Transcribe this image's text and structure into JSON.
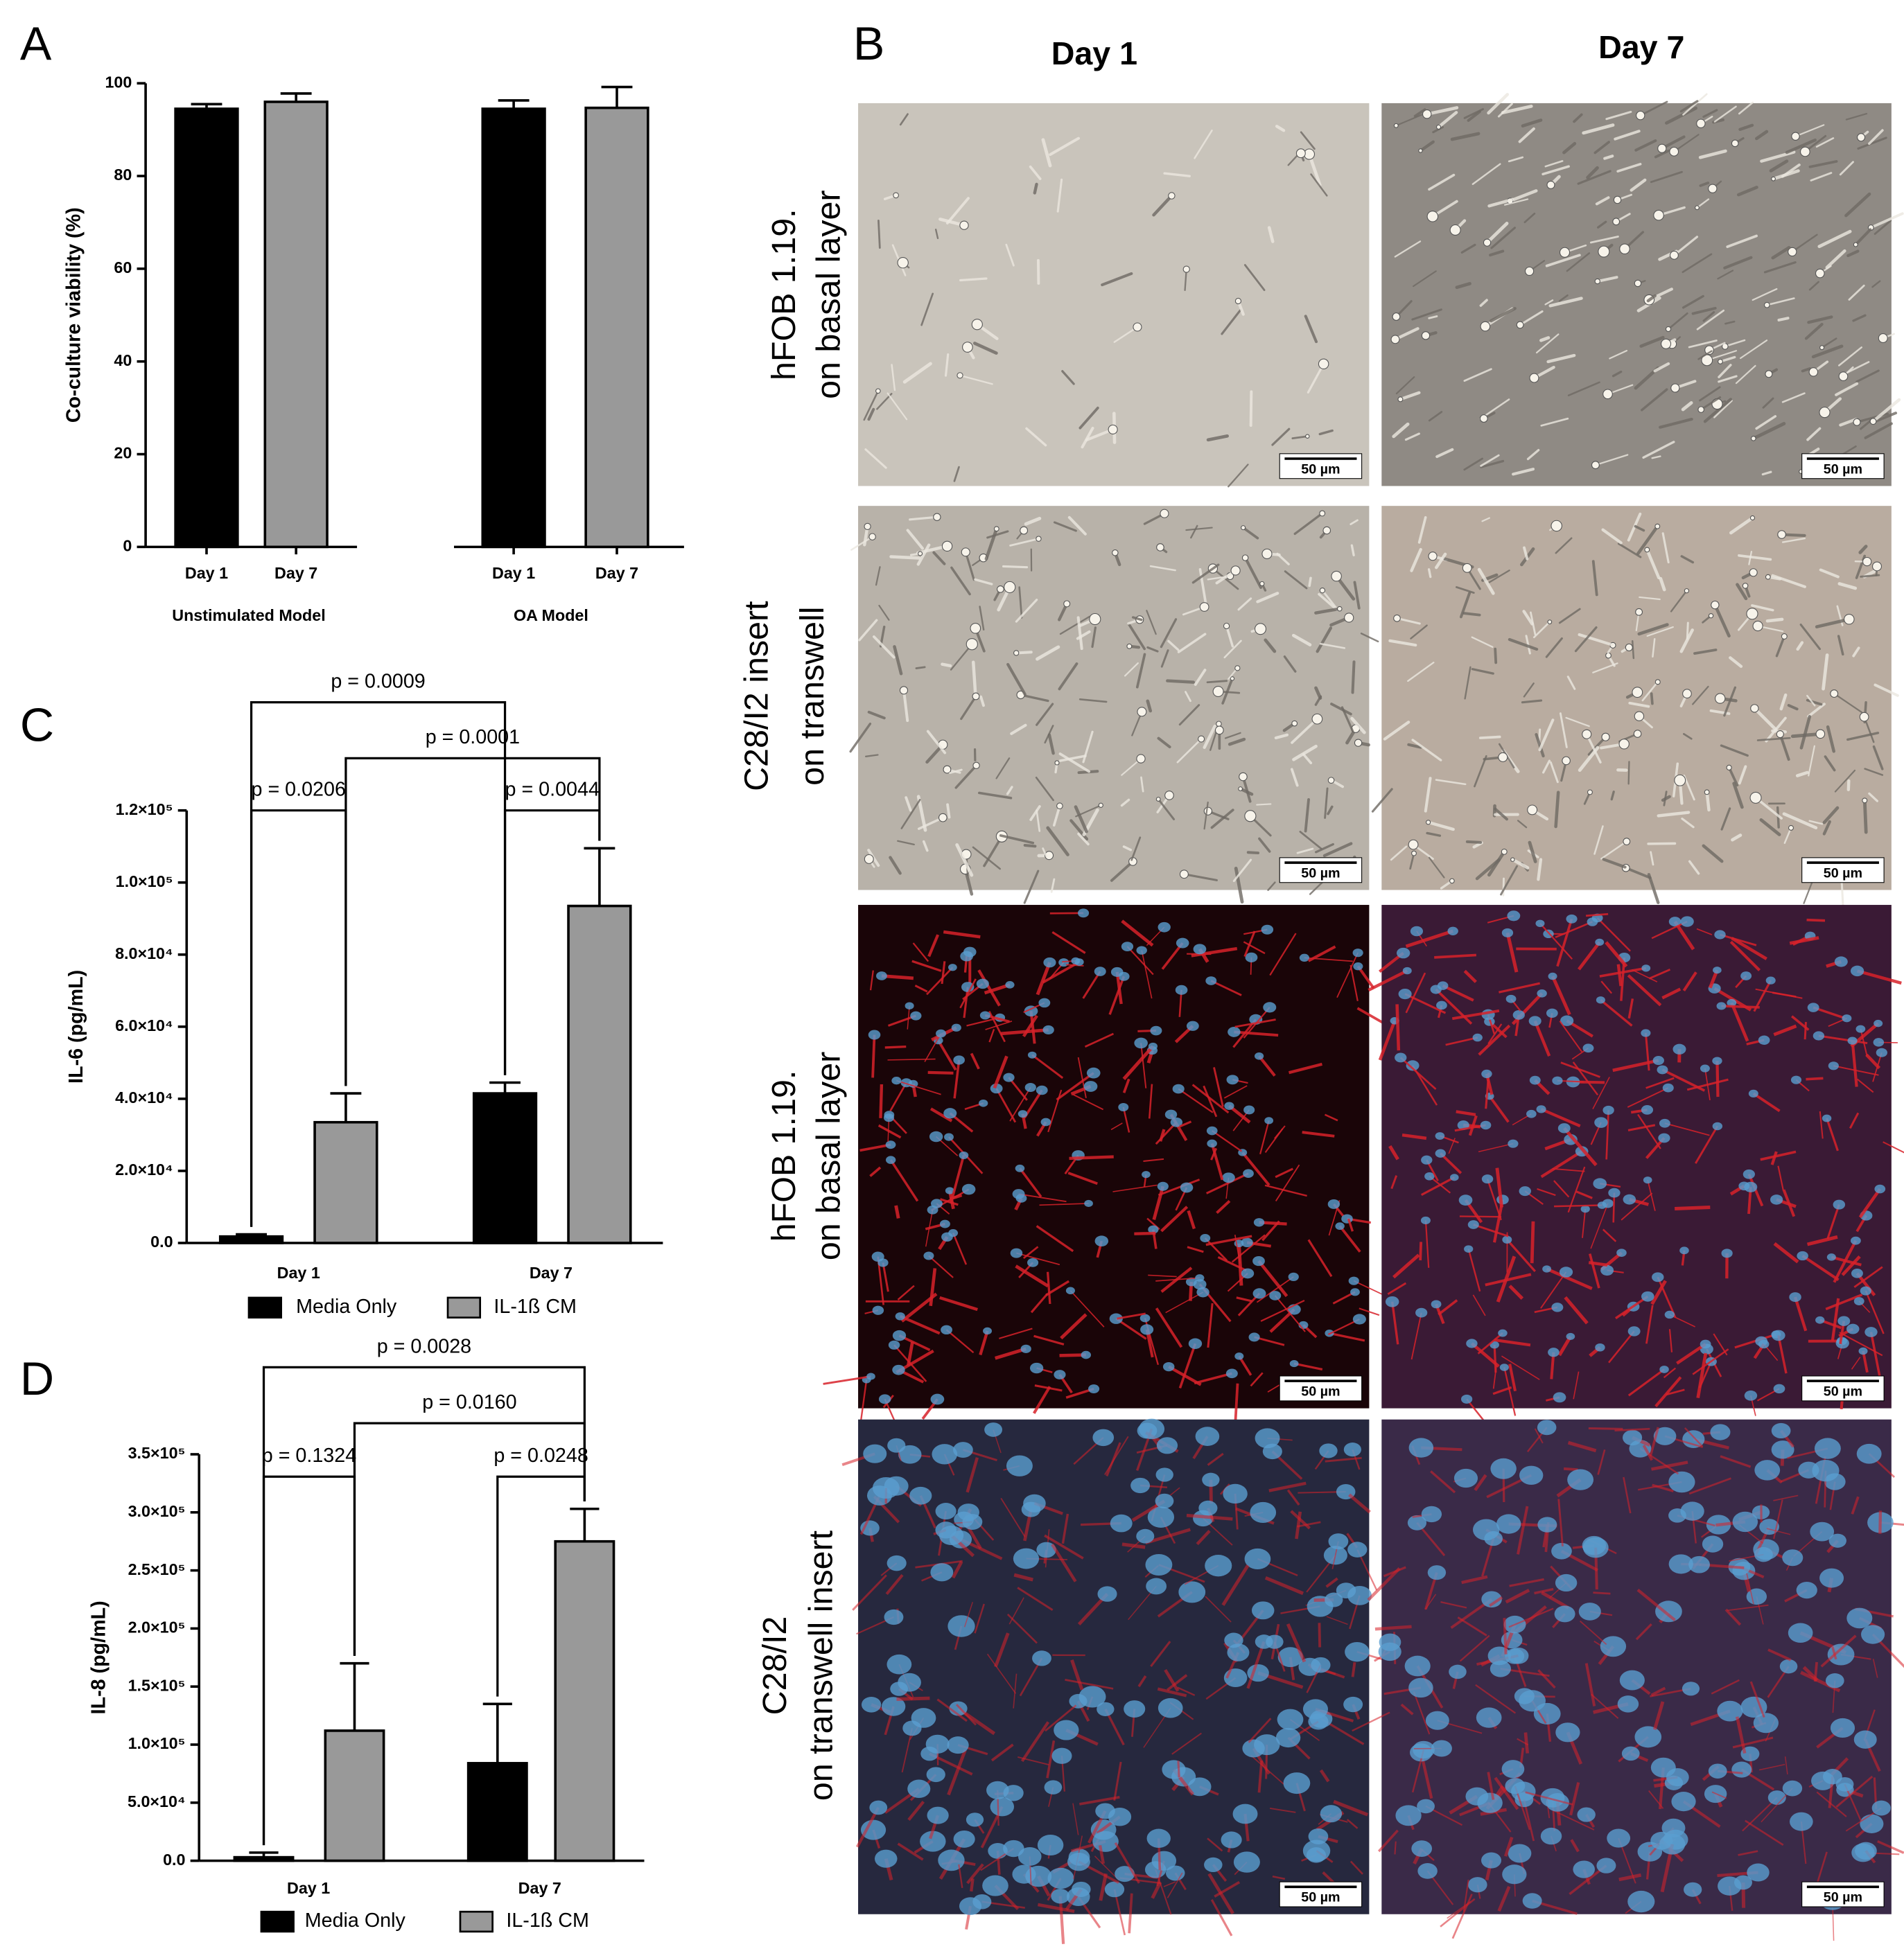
{
  "panel_labels": [
    "A",
    "B",
    "C",
    "D"
  ],
  "micrographs": {
    "columns": [
      "Day 1",
      "Day 7"
    ],
    "rows": [
      {
        "label": [
          "hFOB 1.19.",
          "on basal layer"
        ]
      },
      {
        "label": [
          "C28/I2   insert",
          "on transwell"
        ]
      },
      {
        "label": [
          "hFOB 1.19.",
          "on basal layer"
        ]
      },
      {
        "label": [
          "C28/I2",
          "on transwell insert"
        ]
      }
    ],
    "scale_bar": "50 µm"
  },
  "chart_data": [
    {
      "type": "bar",
      "ylabel": "Co-culture viability (%)",
      "groups": [
        "Unstimulated Model",
        "OA Model"
      ],
      "categories": [
        "Day 1",
        "Day 7",
        "Day 1",
        "Day 7"
      ],
      "values": [
        94.5,
        96,
        94.5,
        94.7
      ],
      "errors": [
        1,
        1.8,
        1.8,
        4.5
      ],
      "colors": [
        "#000000",
        "#999999",
        "#000000",
        "#999999"
      ],
      "ylim": [
        0,
        100
      ],
      "yticks": [
        0,
        20,
        40,
        60,
        80,
        100
      ]
    },
    {
      "type": "grouped_bar",
      "ylabel": "IL-6 (pg/mL)",
      "categories": [
        "Day 1",
        "Day 7"
      ],
      "series": [
        {
          "name": "Media Only",
          "color": "#000000",
          "values": [
            1800,
            41500
          ],
          "errors": [
            600,
            3000
          ]
        },
        {
          "name": "IL-1ß CM",
          "color": "#999999",
          "values": [
            33500,
            93500
          ],
          "errors": [
            8000,
            16000
          ]
        }
      ],
      "ylim": [
        0,
        120000
      ],
      "yticks": [
        {
          "value": 0,
          "label": "0.0"
        },
        {
          "value": 20000,
          "label": "2.0×10⁴"
        },
        {
          "value": 40000,
          "label": "4.0×10⁴"
        },
        {
          "value": 60000,
          "label": "6.0×10⁴"
        },
        {
          "value": 80000,
          "label": "8.0×10⁴"
        },
        {
          "value": 100000,
          "label": "1.0×10⁵"
        },
        {
          "value": 120000,
          "label": "1.2×10⁵"
        }
      ],
      "annotations": [
        "p = 0.0009",
        "p = 0.0001",
        "p = 0.0206",
        "p = 0.0044"
      ]
    },
    {
      "type": "grouped_bar",
      "ylabel": "IL-8 (pg/mL)",
      "categories": [
        "Day 1",
        "Day 7"
      ],
      "series": [
        {
          "name": "Media Only",
          "color": "#000000",
          "values": [
            3000,
            84000
          ],
          "errors": [
            4000,
            51000
          ]
        },
        {
          "name": "IL-1ß CM",
          "color": "#999999",
          "values": [
            112000,
            275000
          ],
          "errors": [
            58000,
            28000
          ]
        }
      ],
      "ylim": [
        0,
        350000
      ],
      "yticks": [
        {
          "value": 0,
          "label": "0.0"
        },
        {
          "value": 50000,
          "label": "5.0×10⁴"
        },
        {
          "value": 100000,
          "label": "1.0×10⁵"
        },
        {
          "value": 150000,
          "label": "1.5×10⁵"
        },
        {
          "value": 200000,
          "label": "2.0×10⁵"
        },
        {
          "value": 250000,
          "label": "2.5×10⁵"
        },
        {
          "value": 300000,
          "label": "3.0×10⁵"
        },
        {
          "value": 350000,
          "label": "3.5×10⁵"
        }
      ],
      "annotations": [
        "p = 0.0028",
        "p = 0.0160",
        "p = 0.1324",
        "p = 0.0248"
      ]
    }
  ]
}
